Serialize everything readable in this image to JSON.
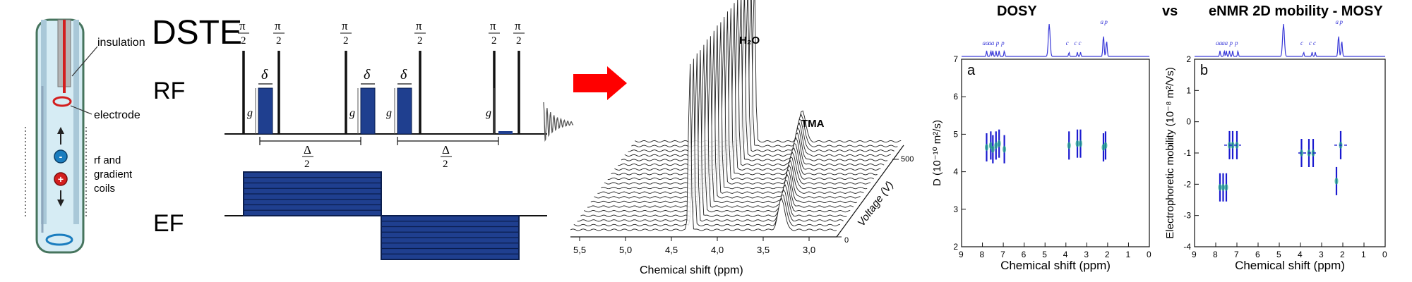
{
  "tube": {
    "insulation_label": "insulation",
    "electrode_label": "electrode",
    "coils_label_1": "rf and",
    "coils_label_2": "gradient",
    "coils_label_3": "coils",
    "minus_sign": "-",
    "plus_sign": "+"
  },
  "sequence": {
    "title": "DSTE",
    "rf_label": "RF",
    "ef_label": "EF",
    "pi_num": "π",
    "pi_den": "2",
    "g_label": "g",
    "delta_label": "δ",
    "Delta_num": "Δ",
    "Delta_den": "2",
    "arrow_color": "#ff0000",
    "pulse_color": "#1f3f8f"
  },
  "stack": {
    "h2o_label": "H₂O",
    "tma_label": "TMA",
    "xlabel": "Chemical shift (ppm)",
    "ylabel": "Voltage (V)",
    "x_ticks": [
      "5,5",
      "5,0",
      "4,5",
      "4,0",
      "3,5",
      "3,0"
    ],
    "v_ticks": [
      "500",
      "0"
    ],
    "peak_h2o_ppm": 4.3,
    "peak_tma_ppm": 3.55,
    "trace_count": 20
  },
  "headers": {
    "dosy": "DOSY",
    "vs": "vs",
    "emosy": "eNMR 2D mobility - MOSY"
  },
  "chart_data": [
    {
      "type": "scatter",
      "panel_label": "a",
      "title": "",
      "xlabel": "Chemical shift (ppm)",
      "ylabel": "D (10⁻¹⁰ m²/s)",
      "xlim": [
        9,
        0
      ],
      "ylim": [
        2,
        7
      ],
      "x_ticks": [
        "9",
        "8",
        "7",
        "6",
        "5",
        "4",
        "3",
        "2",
        "1",
        "0"
      ],
      "y_ticks": [
        "2",
        "3",
        "4",
        "5",
        "6",
        "7"
      ],
      "spectrum_labels": [
        "a",
        "a",
        "a",
        "a",
        "p",
        "p",
        "c",
        "c",
        "c",
        "a",
        "p"
      ],
      "series": [
        {
          "values": [
            {
              "x": 7.8,
              "y": 4.65
            },
            {
              "x": 7.6,
              "y": 4.7
            },
            {
              "x": 7.5,
              "y": 4.6
            },
            {
              "x": 7.35,
              "y": 4.7
            },
            {
              "x": 7.2,
              "y": 4.75
            },
            {
              "x": 6.95,
              "y": 4.6
            },
            {
              "x": 3.85,
              "y": 4.7
            },
            {
              "x": 3.45,
              "y": 4.75
            },
            {
              "x": 3.3,
              "y": 4.75
            },
            {
              "x": 2.2,
              "y": 4.65
            },
            {
              "x": 2.1,
              "y": 4.7
            }
          ]
        }
      ]
    },
    {
      "type": "scatter",
      "panel_label": "b",
      "title": "",
      "xlabel": "Chemical shift (ppm)",
      "ylabel": "Electrophoretic mobility  (10⁻⁸ m²/Vs)",
      "xlim": [
        9,
        0
      ],
      "ylim": [
        -4,
        2
      ],
      "x_ticks": [
        "9",
        "8",
        "7",
        "6",
        "5",
        "4",
        "3",
        "2",
        "1",
        "0"
      ],
      "y_ticks": [
        "-4",
        "-3",
        "-2",
        "-1",
        "0",
        "1",
        "2"
      ],
      "spectrum_labels": [
        "a",
        "a",
        "a",
        "a",
        "p",
        "p",
        "c",
        "c",
        "c",
        "a",
        "p"
      ],
      "series": [
        {
          "values": [
            {
              "x": 7.8,
              "y": -2.1
            },
            {
              "x": 7.65,
              "y": -2.1
            },
            {
              "x": 7.5,
              "y": -2.1
            },
            {
              "x": 7.35,
              "y": -0.75
            },
            {
              "x": 7.2,
              "y": -0.75
            },
            {
              "x": 7.0,
              "y": -0.75
            },
            {
              "x": 3.95,
              "y": -1.0
            },
            {
              "x": 3.6,
              "y": -1.0
            },
            {
              "x": 3.4,
              "y": -1.0
            },
            {
              "x": 2.3,
              "y": -1.9
            },
            {
              "x": 2.1,
              "y": -0.75
            }
          ]
        }
      ]
    }
  ]
}
